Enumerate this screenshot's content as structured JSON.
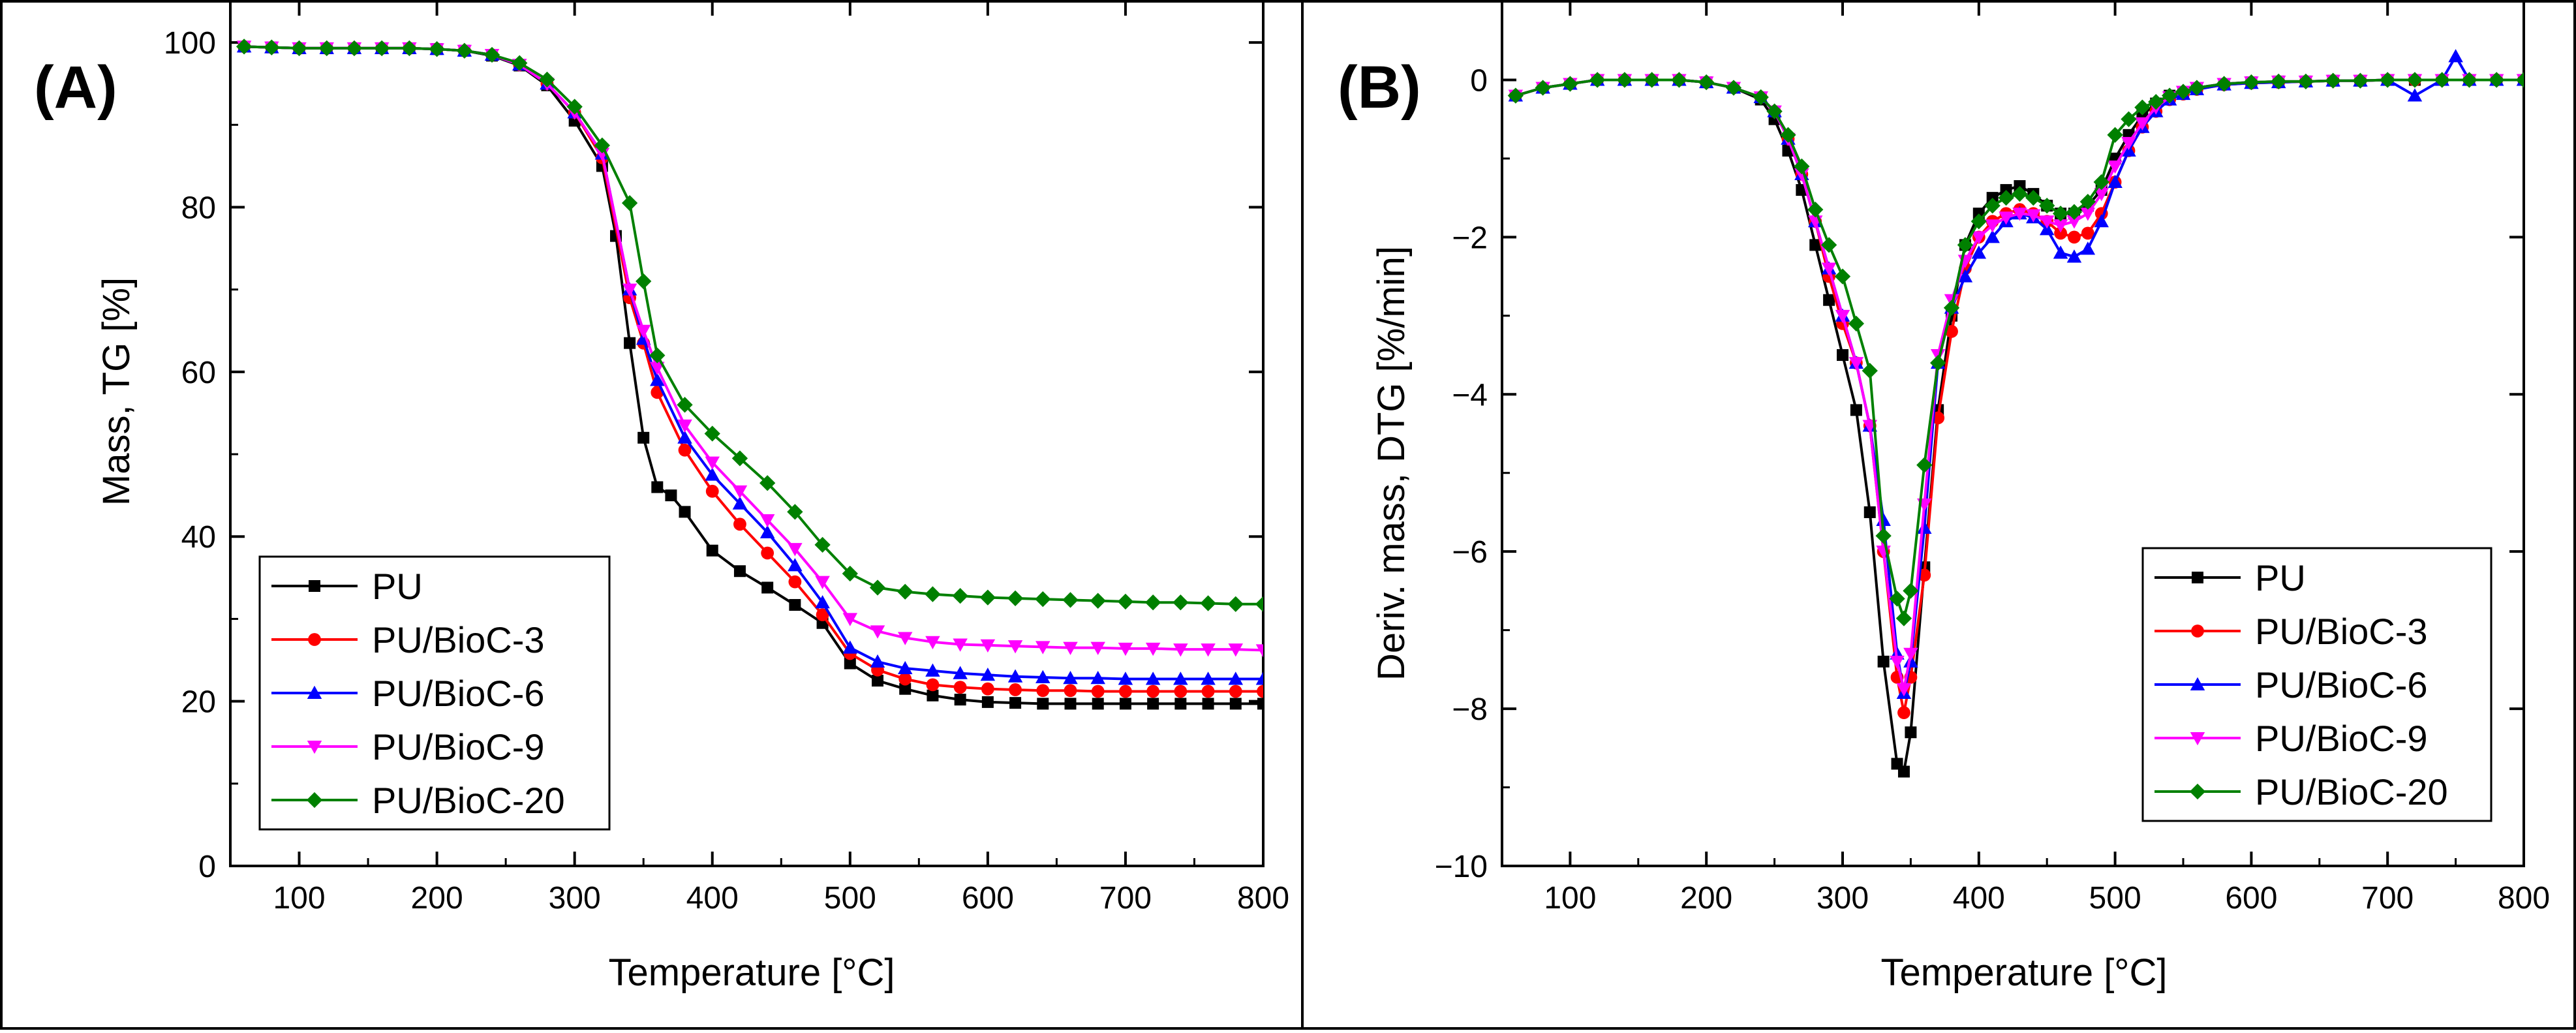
{
  "chart_data": [
    {
      "type": "line",
      "panel_label": "(A)",
      "xlabel": "Temperature [°C]",
      "ylabel": "Mass, TG [%]",
      "xlim": [
        50,
        800
      ],
      "ylim": [
        0,
        105
      ],
      "xticks": [
        100,
        200,
        300,
        400,
        500,
        600,
        700,
        800
      ],
      "xtick_labels": [
        "100",
        "200",
        "300",
        "400",
        "500",
        "600",
        "700",
        "800"
      ],
      "yticks": [
        0,
        20,
        40,
        60,
        80,
        100
      ],
      "ytick_labels": [
        "0",
        "20",
        "40",
        "60",
        "80",
        "100"
      ],
      "legend_position": "lower-left",
      "series": [
        {
          "name": "PU",
          "color": "#000000",
          "marker": "square",
          "x": [
            60,
            80,
            100,
            120,
            140,
            160,
            180,
            200,
            220,
            240,
            260,
            280,
            300,
            320,
            330,
            340,
            350,
            360,
            370,
            380,
            400,
            420,
            440,
            460,
            480,
            500,
            520,
            540,
            560,
            580,
            600,
            620,
            640,
            660,
            680,
            700,
            720,
            740,
            760,
            780,
            800
          ],
          "y": [
            99.5,
            99.4,
            99.3,
            99.3,
            99.3,
            99.3,
            99.3,
            99.2,
            99.0,
            98.4,
            97.2,
            94.8,
            90.5,
            85.0,
            76.5,
            63.5,
            52.0,
            46.0,
            45.0,
            43.0,
            38.3,
            35.8,
            33.8,
            31.7,
            29.5,
            24.6,
            22.5,
            21.5,
            20.7,
            20.2,
            19.9,
            19.8,
            19.7,
            19.7,
            19.7,
            19.7,
            19.7,
            19.7,
            19.7,
            19.7,
            19.7
          ]
        },
        {
          "name": "PU/BioC-3",
          "color": "#ff0000",
          "marker": "circle",
          "x": [
            60,
            80,
            100,
            120,
            140,
            160,
            180,
            200,
            220,
            240,
            260,
            280,
            300,
            320,
            340,
            350,
            360,
            380,
            400,
            420,
            440,
            460,
            480,
            500,
            520,
            540,
            560,
            580,
            600,
            620,
            640,
            660,
            680,
            700,
            720,
            740,
            760,
            780,
            800
          ],
          "y": [
            99.5,
            99.4,
            99.3,
            99.3,
            99.3,
            99.3,
            99.3,
            99.2,
            99.0,
            98.5,
            97.3,
            95.0,
            91.5,
            86.0,
            69.0,
            63.5,
            57.5,
            50.5,
            45.5,
            41.5,
            38.0,
            34.5,
            30.5,
            25.8,
            23.8,
            22.7,
            22.0,
            21.7,
            21.5,
            21.4,
            21.3,
            21.3,
            21.2,
            21.2,
            21.2,
            21.2,
            21.2,
            21.2,
            21.2
          ]
        },
        {
          "name": "PU/BioC-6",
          "color": "#0000ff",
          "marker": "triangle-up",
          "x": [
            60,
            80,
            100,
            120,
            140,
            160,
            180,
            200,
            220,
            240,
            260,
            280,
            300,
            320,
            340,
            350,
            360,
            380,
            400,
            420,
            440,
            460,
            480,
            500,
            520,
            540,
            560,
            580,
            600,
            620,
            640,
            660,
            680,
            700,
            720,
            740,
            760,
            780,
            800
          ],
          "y": [
            99.5,
            99.4,
            99.3,
            99.3,
            99.3,
            99.3,
            99.3,
            99.2,
            99.0,
            98.5,
            97.3,
            95.0,
            91.5,
            86.5,
            70.0,
            64.0,
            59.0,
            52.0,
            47.5,
            44.0,
            40.5,
            36.5,
            32.0,
            26.5,
            24.8,
            24.0,
            23.7,
            23.4,
            23.2,
            23.0,
            22.9,
            22.8,
            22.8,
            22.7,
            22.7,
            22.7,
            22.7,
            22.7,
            22.7
          ]
        },
        {
          "name": "PU/BioC-9",
          "color": "#ff00ff",
          "marker": "triangle-down",
          "x": [
            60,
            80,
            100,
            120,
            140,
            160,
            180,
            200,
            220,
            240,
            260,
            280,
            300,
            320,
            340,
            350,
            360,
            380,
            400,
            420,
            440,
            460,
            480,
            500,
            520,
            540,
            560,
            580,
            600,
            620,
            640,
            660,
            680,
            700,
            720,
            740,
            760,
            780,
            800
          ],
          "y": [
            99.5,
            99.4,
            99.3,
            99.3,
            99.3,
            99.3,
            99.3,
            99.2,
            99.0,
            98.5,
            97.3,
            95.0,
            91.5,
            86.5,
            70.0,
            65.0,
            60.5,
            53.5,
            49.0,
            45.5,
            42.0,
            38.5,
            34.5,
            30.0,
            28.5,
            27.7,
            27.2,
            26.9,
            26.8,
            26.7,
            26.6,
            26.5,
            26.5,
            26.4,
            26.4,
            26.3,
            26.3,
            26.3,
            26.2
          ]
        },
        {
          "name": "PU/BioC-20",
          "color": "#008000",
          "marker": "diamond",
          "x": [
            60,
            80,
            100,
            120,
            140,
            160,
            180,
            200,
            220,
            240,
            260,
            280,
            300,
            320,
            340,
            350,
            360,
            380,
            400,
            420,
            440,
            460,
            480,
            500,
            520,
            540,
            560,
            580,
            600,
            620,
            640,
            660,
            680,
            700,
            720,
            740,
            760,
            780,
            800
          ],
          "y": [
            99.5,
            99.4,
            99.3,
            99.3,
            99.3,
            99.3,
            99.3,
            99.2,
            99.0,
            98.5,
            97.5,
            95.5,
            92.2,
            87.5,
            80.5,
            71.0,
            62.0,
            56.0,
            52.5,
            49.5,
            46.5,
            43.0,
            39.0,
            35.5,
            33.8,
            33.3,
            33.0,
            32.8,
            32.6,
            32.5,
            32.4,
            32.3,
            32.2,
            32.1,
            32.0,
            32.0,
            31.9,
            31.8,
            31.8
          ]
        }
      ]
    },
    {
      "type": "line",
      "panel_label": "(B)",
      "xlabel": "Temperature [°C]",
      "ylabel": "Deriv. mass, DTG [%/min]",
      "xlim": [
        50,
        800
      ],
      "ylim": [
        -10,
        1
      ],
      "xticks": [
        100,
        200,
        300,
        400,
        500,
        600,
        700,
        800
      ],
      "xtick_labels": [
        "100",
        "200",
        "300",
        "400",
        "500",
        "600",
        "700",
        "800"
      ],
      "yticks": [
        -10,
        -8,
        -6,
        -4,
        -2,
        0
      ],
      "ytick_labels": [
        "−10",
        "−8",
        "−6",
        "−4",
        "−2",
        "0"
      ],
      "legend_position": "lower-right",
      "series": [
        {
          "name": "PU",
          "color": "#000000",
          "marker": "square",
          "x": [
            60,
            80,
            100,
            120,
            140,
            160,
            180,
            200,
            220,
            240,
            250,
            260,
            270,
            280,
            290,
            300,
            310,
            320,
            330,
            340,
            345,
            350,
            360,
            370,
            380,
            390,
            400,
            410,
            420,
            430,
            440,
            450,
            460,
            470,
            480,
            490,
            500,
            510,
            520,
            530,
            540,
            550,
            560,
            580,
            600,
            620,
            640,
            660,
            680,
            700,
            720,
            740,
            760,
            780,
            800
          ],
          "y": [
            -0.2,
            -0.1,
            -0.05,
            0,
            0,
            0,
            0,
            -0.03,
            -0.1,
            -0.25,
            -0.5,
            -0.9,
            -1.4,
            -2.1,
            -2.8,
            -3.5,
            -4.2,
            -5.5,
            -7.4,
            -8.7,
            -8.8,
            -8.3,
            -6.2,
            -4.2,
            -3.0,
            -2.1,
            -1.7,
            -1.5,
            -1.4,
            -1.35,
            -1.45,
            -1.6,
            -1.7,
            -1.7,
            -1.6,
            -1.4,
            -1.0,
            -0.7,
            -0.45,
            -0.3,
            -0.2,
            -0.15,
            -0.1,
            -0.05,
            -0.03,
            -0.02,
            -0.02,
            -0.01,
            -0.01,
            0,
            0,
            0,
            0,
            0,
            0
          ]
        },
        {
          "name": "PU/BioC-3",
          "color": "#ff0000",
          "marker": "circle",
          "x": [
            60,
            80,
            100,
            120,
            140,
            160,
            180,
            200,
            220,
            240,
            250,
            260,
            270,
            280,
            290,
            300,
            310,
            320,
            330,
            340,
            345,
            350,
            360,
            370,
            380,
            390,
            400,
            410,
            420,
            430,
            440,
            450,
            460,
            470,
            480,
            490,
            500,
            510,
            520,
            530,
            540,
            550,
            560,
            580,
            600,
            620,
            640,
            660,
            680,
            700,
            720,
            740,
            760,
            780,
            800
          ],
          "y": [
            -0.2,
            -0.1,
            -0.05,
            0,
            0,
            0,
            0,
            -0.03,
            -0.1,
            -0.22,
            -0.4,
            -0.75,
            -1.2,
            -1.8,
            -2.5,
            -3.1,
            -3.6,
            -4.4,
            -6.0,
            -7.6,
            -8.05,
            -7.6,
            -6.3,
            -4.3,
            -3.2,
            -2.4,
            -2.0,
            -1.8,
            -1.7,
            -1.65,
            -1.7,
            -1.8,
            -1.95,
            -2.0,
            -1.95,
            -1.7,
            -1.3,
            -0.9,
            -0.6,
            -0.4,
            -0.25,
            -0.18,
            -0.12,
            -0.06,
            -0.04,
            -0.03,
            -0.02,
            -0.01,
            -0.01,
            0,
            0,
            0,
            0,
            0,
            0
          ]
        },
        {
          "name": "PU/BioC-6",
          "color": "#0000ff",
          "marker": "triangle-up",
          "x": [
            60,
            80,
            100,
            120,
            140,
            160,
            180,
            200,
            220,
            240,
            250,
            260,
            270,
            280,
            290,
            300,
            310,
            320,
            330,
            340,
            345,
            350,
            360,
            370,
            380,
            390,
            400,
            410,
            420,
            430,
            440,
            450,
            460,
            470,
            480,
            490,
            500,
            510,
            520,
            530,
            540,
            550,
            560,
            580,
            600,
            620,
            640,
            660,
            680,
            700,
            720,
            740,
            750,
            760,
            780,
            800
          ],
          "y": [
            -0.2,
            -0.1,
            -0.05,
            0,
            0,
            0,
            0,
            -0.03,
            -0.1,
            -0.22,
            -0.4,
            -0.75,
            -1.2,
            -1.8,
            -2.4,
            -3.0,
            -3.6,
            -4.4,
            -5.6,
            -7.3,
            -7.8,
            -7.4,
            -5.7,
            -3.6,
            -2.9,
            -2.5,
            -2.2,
            -2.0,
            -1.8,
            -1.7,
            -1.75,
            -1.9,
            -2.2,
            -2.25,
            -2.15,
            -1.8,
            -1.3,
            -0.9,
            -0.6,
            -0.4,
            -0.25,
            -0.18,
            -0.12,
            -0.06,
            -0.04,
            -0.03,
            -0.02,
            -0.01,
            -0.01,
            0,
            -0.2,
            0,
            0.3,
            0,
            0,
            0
          ]
        },
        {
          "name": "PU/BioC-9",
          "color": "#ff00ff",
          "marker": "triangle-down",
          "x": [
            60,
            80,
            100,
            120,
            140,
            160,
            180,
            200,
            220,
            240,
            250,
            260,
            270,
            280,
            290,
            300,
            310,
            320,
            330,
            340,
            345,
            350,
            360,
            370,
            380,
            390,
            400,
            410,
            420,
            430,
            440,
            450,
            460,
            470,
            480,
            490,
            500,
            510,
            520,
            530,
            540,
            550,
            560,
            580,
            600,
            620,
            640,
            660,
            680,
            700,
            720,
            740,
            760,
            780,
            800
          ],
          "y": [
            -0.2,
            -0.1,
            -0.05,
            0,
            0,
            0,
            0,
            -0.03,
            -0.1,
            -0.22,
            -0.4,
            -0.75,
            -1.2,
            -1.8,
            -2.4,
            -3.0,
            -3.6,
            -4.4,
            -6.0,
            -7.4,
            -7.75,
            -7.3,
            -5.4,
            -3.5,
            -2.8,
            -2.3,
            -2.0,
            -1.85,
            -1.75,
            -1.7,
            -1.72,
            -1.8,
            -1.85,
            -1.8,
            -1.7,
            -1.45,
            -1.1,
            -0.8,
            -0.55,
            -0.35,
            -0.22,
            -0.15,
            -0.1,
            -0.05,
            -0.03,
            -0.02,
            -0.02,
            -0.01,
            -0.01,
            0,
            0,
            0,
            0,
            0,
            0
          ]
        },
        {
          "name": "PU/BioC-20",
          "color": "#008000",
          "marker": "diamond",
          "x": [
            60,
            80,
            100,
            120,
            140,
            160,
            180,
            200,
            220,
            240,
            250,
            260,
            270,
            280,
            290,
            300,
            310,
            320,
            330,
            340,
            345,
            350,
            360,
            370,
            380,
            390,
            400,
            410,
            420,
            430,
            440,
            450,
            460,
            470,
            480,
            490,
            500,
            510,
            520,
            530,
            540,
            550,
            560,
            580,
            600,
            620,
            640,
            660,
            680,
            700,
            720,
            740,
            760,
            780,
            800
          ],
          "y": [
            -0.2,
            -0.1,
            -0.05,
            0,
            0,
            0,
            0,
            -0.03,
            -0.1,
            -0.22,
            -0.4,
            -0.7,
            -1.1,
            -1.65,
            -2.1,
            -2.5,
            -3.1,
            -3.7,
            -5.8,
            -6.6,
            -6.85,
            -6.5,
            -4.9,
            -3.6,
            -2.9,
            -2.1,
            -1.8,
            -1.6,
            -1.5,
            -1.45,
            -1.5,
            -1.6,
            -1.7,
            -1.68,
            -1.55,
            -1.3,
            -0.7,
            -0.5,
            -0.35,
            -0.28,
            -0.2,
            -0.15,
            -0.1,
            -0.05,
            -0.03,
            -0.02,
            -0.02,
            -0.01,
            -0.01,
            0,
            0,
            0,
            0,
            0,
            0
          ]
        }
      ]
    }
  ]
}
